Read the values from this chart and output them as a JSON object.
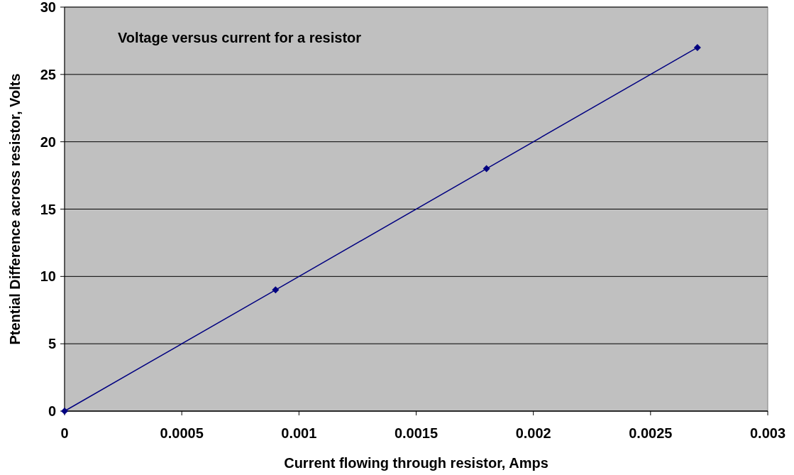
{
  "chart_data": {
    "type": "line",
    "title": "Voltage versus current for a resistor",
    "xlabel": "Current flowing through resistor, Amps",
    "ylabel": "Ptential Difference across resistor, Volts",
    "x": [
      0,
      0.0009,
      0.0018,
      0.0027
    ],
    "series": [
      {
        "color": "#000080",
        "values": [
          0,
          9,
          18,
          27
        ]
      }
    ],
    "xlim": [
      0,
      0.003
    ],
    "xticks": [
      0,
      0.0005,
      0.001,
      0.0015,
      0.002,
      0.0025,
      0.003
    ],
    "ylim": [
      0,
      30
    ],
    "yticks": [
      0,
      5,
      10,
      15,
      20,
      25,
      30
    ],
    "grid": "y",
    "marker": "diamond",
    "line_style": "solid"
  }
}
